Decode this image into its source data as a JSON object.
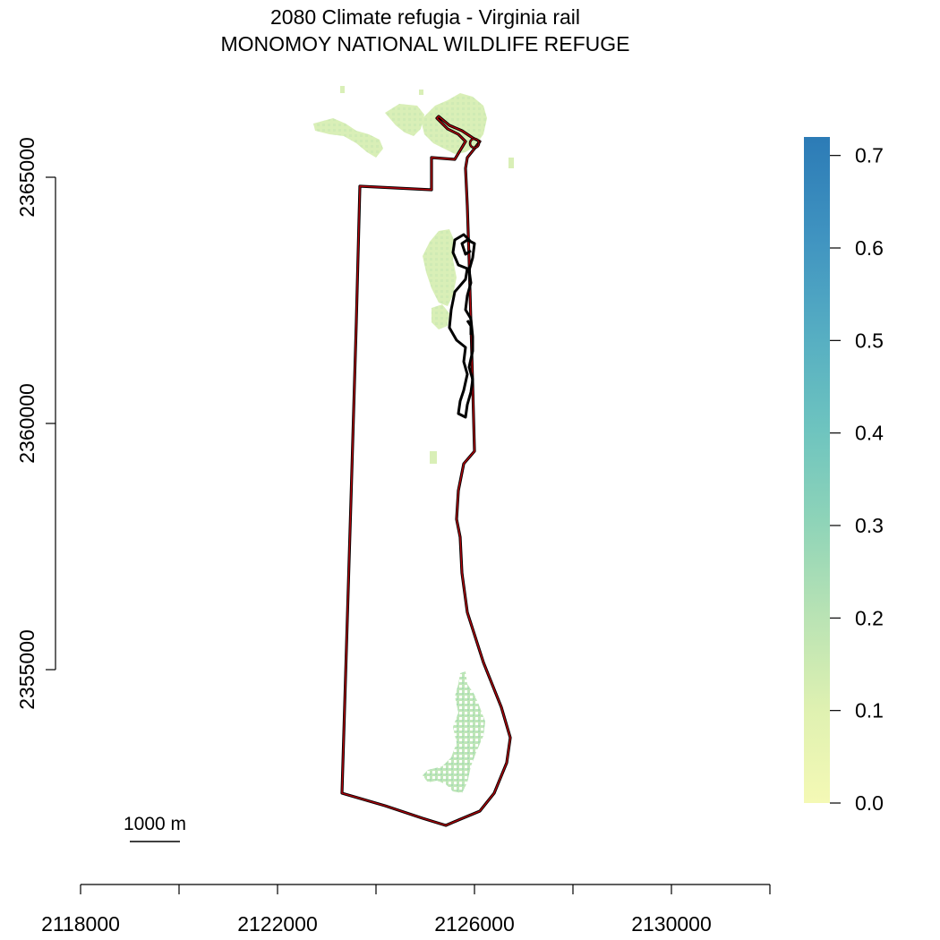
{
  "title": {
    "line1": "2080 Climate refugia - Virginia rail",
    "line2": "MONOMOY NATIONAL WILDLIFE REFUGE"
  },
  "x_axis": {
    "ticks": [
      2118000,
      2120000,
      2122000,
      2124000,
      2126000,
      2128000,
      2130000,
      2132000
    ],
    "tick_labels": [
      "2118000",
      "",
      "2122000",
      "",
      "2126000",
      "",
      "2130000",
      ""
    ]
  },
  "y_axis": {
    "ticks": [
      2355000,
      2360000,
      2365000
    ],
    "tick_labels": [
      "2355000",
      "2360000",
      "2365000"
    ]
  },
  "legend": {
    "range": [
      0.0,
      0.72
    ],
    "ticks": [
      "0.0",
      "0.1",
      "0.2",
      "0.3",
      "0.4",
      "0.5",
      "0.6",
      "0.7"
    ],
    "colors": [
      "#f7fbb9",
      "#d6efb3",
      "#a4dab6",
      "#72c8bd",
      "#53b0c1",
      "#3f92c0",
      "#2c7bb6"
    ]
  },
  "scale_bar": {
    "label": "1000 m",
    "length_m": 1000
  },
  "colors": {
    "refuge_boundary_outer": "#000000",
    "refuge_boundary_inner": "#b3000c",
    "low_suitability": "#d9efb7",
    "mid_suitability": "#b8e3b6"
  }
}
